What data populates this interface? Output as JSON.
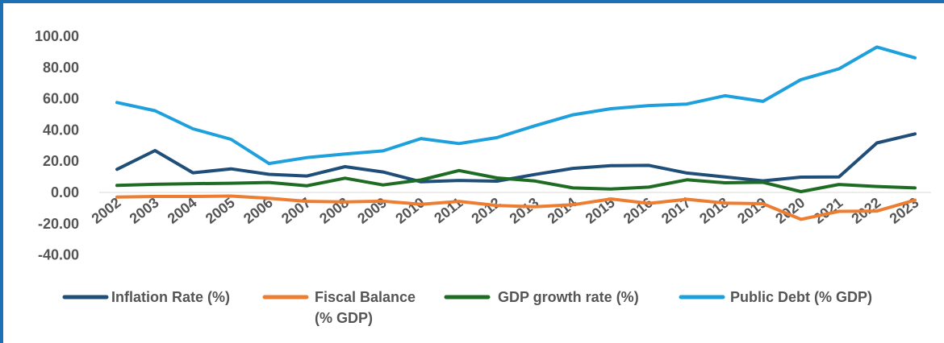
{
  "chart_data": {
    "type": "line",
    "title": "",
    "xlabel": "",
    "ylabel": "",
    "x": [
      "2002",
      "2003",
      "2004",
      "2005",
      "2006",
      "2007",
      "2008",
      "2009",
      "2010",
      "2011",
      "2012",
      "2013",
      "2014",
      "2015",
      "2016",
      "2017",
      "2018",
      "2019",
      "2020",
      "2021",
      "2022",
      "2023"
    ],
    "ylim": [
      -40,
      100
    ],
    "yticks": [
      "100.00",
      "80.00",
      "60.00",
      "40.00",
      "20.00",
      "0.00",
      "-20.00",
      "-40.00"
    ],
    "ytick_values": [
      100,
      80,
      60,
      40,
      20,
      0,
      -20,
      -40
    ],
    "grid": false,
    "legend_position": "bottom",
    "series": [
      {
        "name": "Inflation Rate (%)",
        "color": "#1f4e79",
        "values": [
          14.8,
          26.8,
          12.6,
          15.1,
          11.6,
          10.5,
          16.5,
          13.1,
          6.8,
          7.7,
          7.2,
          11.5,
          15.4,
          17.1,
          17.3,
          12.4,
          9.9,
          7.4,
          9.8,
          9.9,
          31.7,
          37.5
        ]
      },
      {
        "name": "Fiscal Balance (% GDP)",
        "color": "#ed7d31",
        "values": [
          -3.0,
          -2.6,
          -2.6,
          -2.3,
          -3.7,
          -5.7,
          -6.1,
          -5.6,
          -7.6,
          -5.7,
          -8.4,
          -9.1,
          -7.9,
          -4.2,
          -7.0,
          -4.4,
          -6.8,
          -7.2,
          -17.2,
          -12.1,
          -11.9,
          -4.9
        ]
      },
      {
        "name": "GDP growth rate (%)",
        "color": "#1e6b24",
        "values": [
          4.5,
          5.2,
          5.6,
          5.9,
          6.4,
          4.3,
          9.1,
          4.8,
          8.0,
          14.0,
          9.3,
          7.3,
          2.9,
          2.2,
          3.4,
          8.1,
          6.2,
          6.5,
          0.5,
          5.1,
          3.8,
          2.9
        ]
      },
      {
        "name": "Public Debt (% GDP)",
        "color": "#1ea0dc",
        "values": [
          57.6,
          52.3,
          40.7,
          34.0,
          18.5,
          22.3,
          24.6,
          26.6,
          34.5,
          31.3,
          35.1,
          42.7,
          49.7,
          53.6,
          55.6,
          56.6,
          61.9,
          58.3,
          72.2,
          79.1,
          93.1,
          86.2
        ]
      }
    ]
  }
}
